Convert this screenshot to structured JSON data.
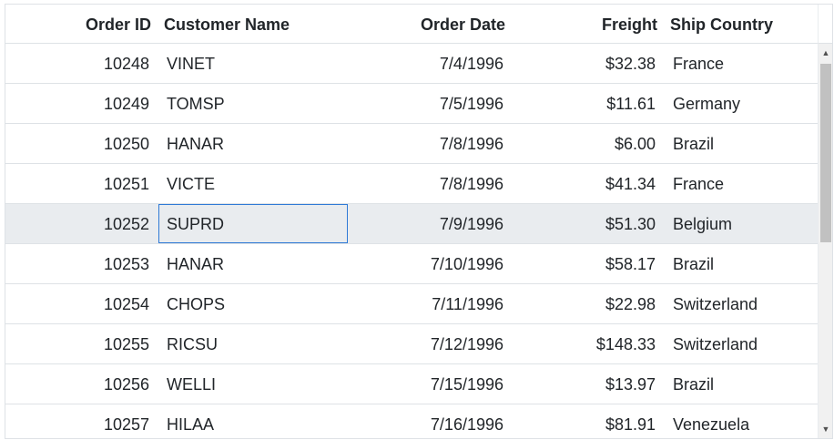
{
  "columns": {
    "order_id": "Order ID",
    "customer_name": "Customer Name",
    "order_date": "Order Date",
    "freight": "Freight",
    "ship_country": "Ship Country"
  },
  "rows": [
    {
      "order_id": "10248",
      "customer_name": "VINET",
      "order_date": "7/4/1996",
      "freight": "$32.38",
      "ship_country": "France"
    },
    {
      "order_id": "10249",
      "customer_name": "TOMSP",
      "order_date": "7/5/1996",
      "freight": "$11.61",
      "ship_country": "Germany"
    },
    {
      "order_id": "10250",
      "customer_name": "HANAR",
      "order_date": "7/8/1996",
      "freight": "$6.00",
      "ship_country": "Brazil"
    },
    {
      "order_id": "10251",
      "customer_name": "VICTE",
      "order_date": "7/8/1996",
      "freight": "$41.34",
      "ship_country": "France"
    },
    {
      "order_id": "10252",
      "customer_name": "SUPRD",
      "order_date": "7/9/1996",
      "freight": "$51.30",
      "ship_country": "Belgium"
    },
    {
      "order_id": "10253",
      "customer_name": "HANAR",
      "order_date": "7/10/1996",
      "freight": "$58.17",
      "ship_country": "Brazil"
    },
    {
      "order_id": "10254",
      "customer_name": "CHOPS",
      "order_date": "7/11/1996",
      "freight": "$22.98",
      "ship_country": "Switzerland"
    },
    {
      "order_id": "10255",
      "customer_name": "RICSU",
      "order_date": "7/12/1996",
      "freight": "$148.33",
      "ship_country": "Switzerland"
    },
    {
      "order_id": "10256",
      "customer_name": "WELLI",
      "order_date": "7/15/1996",
      "freight": "$13.97",
      "ship_country": "Brazil"
    },
    {
      "order_id": "10257",
      "customer_name": "HILAA",
      "order_date": "7/16/1996",
      "freight": "$81.91",
      "ship_country": "Venezuela"
    }
  ],
  "selected_row_index": 4,
  "colors": {
    "selected_row_bg": "#e9ecef",
    "focus_border": "#2f7ad6",
    "grid_line": "#dee2e6"
  },
  "icons": {
    "scroll_up": "scroll-up-arrow-icon",
    "scroll_down": "scroll-down-arrow-icon"
  }
}
